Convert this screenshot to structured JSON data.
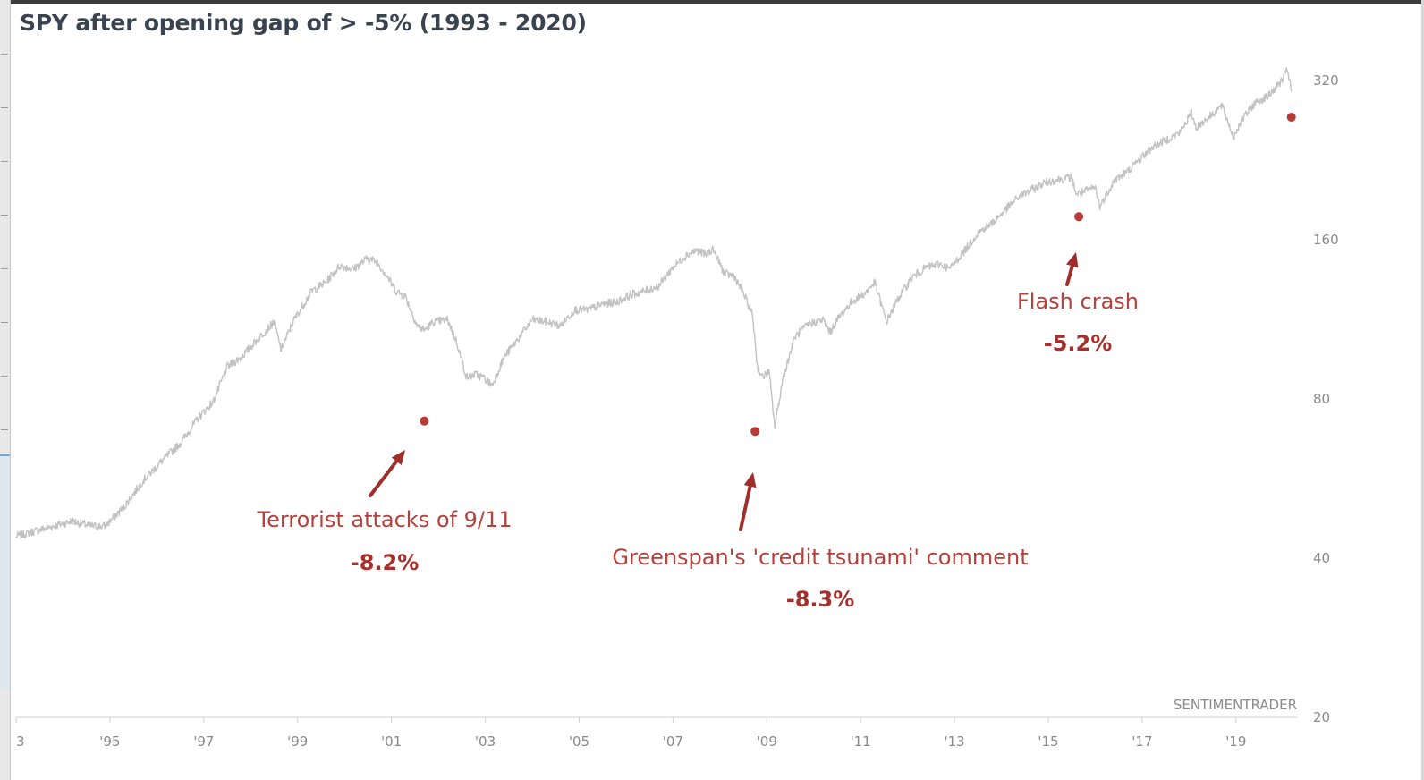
{
  "chart_data": {
    "type": "line",
    "title": "SPY after opening gap of > -5% (1993 - 2020)",
    "watermark": "SENTIMENTRADER",
    "y_scale": "log",
    "ylim": [
      20,
      360
    ],
    "xlim": [
      1993.0,
      2020.3
    ],
    "y_ticks": [
      {
        "value": 20,
        "label": "20"
      },
      {
        "value": 40,
        "label": "40"
      },
      {
        "value": 80,
        "label": "80"
      },
      {
        "value": 160,
        "label": "160"
      },
      {
        "value": 320,
        "label": "320"
      }
    ],
    "x_ticks": [
      {
        "value": 1993,
        "label": "3"
      },
      {
        "value": 1995,
        "label": "'95"
      },
      {
        "value": 1997,
        "label": "'97"
      },
      {
        "value": 1999,
        "label": "'99"
      },
      {
        "value": 2001,
        "label": "'01"
      },
      {
        "value": 2003,
        "label": "'03"
      },
      {
        "value": 2005,
        "label": "'05"
      },
      {
        "value": 2007,
        "label": "'07"
      },
      {
        "value": 2009,
        "label": "'09"
      },
      {
        "value": 2011,
        "label": "'11"
      },
      {
        "value": 2013,
        "label": "'13"
      },
      {
        "value": 2015,
        "label": "'15"
      },
      {
        "value": 2017,
        "label": "'17"
      },
      {
        "value": 2019,
        "label": "'19"
      }
    ],
    "series": [
      {
        "color": "#c2c2c2",
        "x": [
          1993.0,
          1993.4,
          1993.8,
          1994.2,
          1994.6,
          1994.9,
          1995.3,
          1995.7,
          1996.1,
          1996.5,
          1996.9,
          1997.2,
          1997.5,
          1997.8,
          1998.2,
          1998.5,
          1998.65,
          1998.9,
          1999.3,
          1999.6,
          1999.9,
          2000.2,
          2000.5,
          2000.7,
          2000.9,
          2001.1,
          2001.3,
          2001.55,
          2001.7,
          2001.9,
          2002.2,
          2002.4,
          2002.6,
          2002.8,
          2002.95,
          2003.15,
          2003.4,
          2003.7,
          2004.0,
          2004.3,
          2004.6,
          2004.9,
          2005.2,
          2005.5,
          2005.8,
          2006.1,
          2006.4,
          2006.7,
          2007.0,
          2007.3,
          2007.5,
          2007.7,
          2007.85,
          2008.1,
          2008.3,
          2008.5,
          2008.7,
          2008.8,
          2008.9,
          2009.05,
          2009.17,
          2009.35,
          2009.6,
          2009.9,
          2010.2,
          2010.35,
          2010.5,
          2010.8,
          2011.1,
          2011.3,
          2011.55,
          2011.8,
          2012.1,
          2012.4,
          2012.7,
          2012.9,
          2013.2,
          2013.5,
          2013.8,
          2014.1,
          2014.4,
          2014.7,
          2014.9,
          2015.2,
          2015.5,
          2015.6,
          2015.8,
          2016.0,
          2016.1,
          2016.4,
          2016.7,
          2016.9,
          2017.2,
          2017.5,
          2017.8,
          2018.05,
          2018.15,
          2018.4,
          2018.7,
          2018.95,
          2019.1,
          2019.4,
          2019.7,
          2020.0,
          2020.1,
          2020.18
        ],
        "values": [
          44,
          45,
          46,
          47,
          46,
          46,
          50,
          56,
          61,
          66,
          74,
          79,
          92,
          96,
          105,
          112,
          99,
          112,
          128,
          133,
          143,
          141,
          148,
          145,
          137,
          128,
          125,
          110,
          108,
          112,
          113,
          102,
          88,
          89,
          88,
          85,
          96,
          104,
          113,
          112,
          110,
          118,
          118,
          121,
          122,
          126,
          128,
          131,
          142,
          150,
          153,
          150,
          154,
          138,
          137,
          127,
          115,
          92,
          88,
          90,
          71,
          88,
          105,
          111,
          113,
          107,
          113,
          122,
          127,
          133,
          112,
          124,
          136,
          142,
          144,
          141,
          152,
          165,
          172,
          183,
          194,
          200,
          205,
          208,
          210,
          195,
          198,
          201,
          185,
          207,
          216,
          225,
          239,
          247,
          255,
          278,
          261,
          272,
          287,
          250,
          268,
          290,
          300,
          322,
          337,
          305
        ]
      }
    ],
    "events": [
      {
        "x": 2001.7,
        "y": 72.7,
        "label": "Terrorist attacks of 9/11",
        "value": "-8.2%",
        "color": "#b63a36"
      },
      {
        "x": 2008.75,
        "y": 69.5,
        "label": "Greenspan's 'credit tsunami' comment",
        "value": "-8.3%",
        "color": "#b63a36"
      },
      {
        "x": 2015.65,
        "y": 177,
        "label": "Flash crash",
        "value": "-5.2%",
        "color": "#b63a36"
      },
      {
        "x": 2020.18,
        "y": 273,
        "label": "",
        "value": "",
        "color": "#b63a36"
      }
    ]
  }
}
